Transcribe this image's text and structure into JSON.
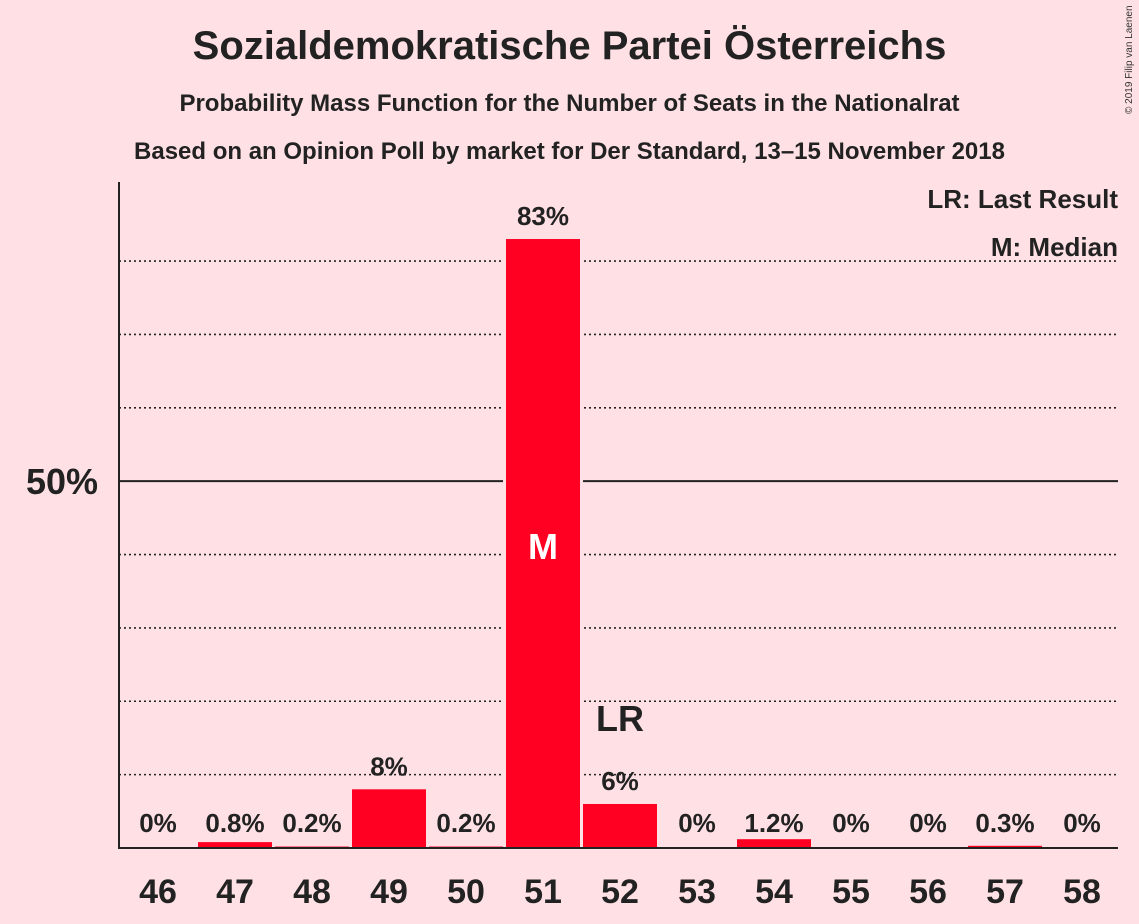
{
  "chart_data": {
    "type": "bar",
    "title": "Sozialdemokratische Partei Österreichs",
    "subtitle": "Probability Mass Function for the Number of Seats in the Nationalrat",
    "subtitle2": "Based on an Opinion Poll by market for Der Standard, 13–15 November 2018",
    "copyright": "© 2019 Filip van Laenen",
    "categories": [
      "46",
      "47",
      "48",
      "49",
      "50",
      "51",
      "52",
      "53",
      "54",
      "55",
      "56",
      "57",
      "58"
    ],
    "values": [
      0,
      0.8,
      0.2,
      8,
      0.2,
      83,
      6,
      0,
      1.2,
      0,
      0,
      0.3,
      0
    ],
    "value_labels": [
      "0%",
      "0.8%",
      "0.2%",
      "8%",
      "0.2%",
      "83%",
      "6%",
      "0%",
      "1.2%",
      "0%",
      "0%",
      "0.3%",
      "0%"
    ],
    "ylim": [
      0,
      90
    ],
    "y_ticks": [
      {
        "value": 50,
        "label": "50%"
      }
    ],
    "gridlines": [
      10,
      20,
      30,
      40,
      60,
      70,
      80
    ],
    "grid": true,
    "bar_color": "#ff0022",
    "background_color": "#ffe1e5",
    "median": {
      "category": "51",
      "label": "M"
    },
    "last_result": {
      "category": "52",
      "label": "LR"
    },
    "legend": {
      "placement": "top-right",
      "entries": [
        "LR: Last Result",
        "M: Median"
      ]
    }
  }
}
